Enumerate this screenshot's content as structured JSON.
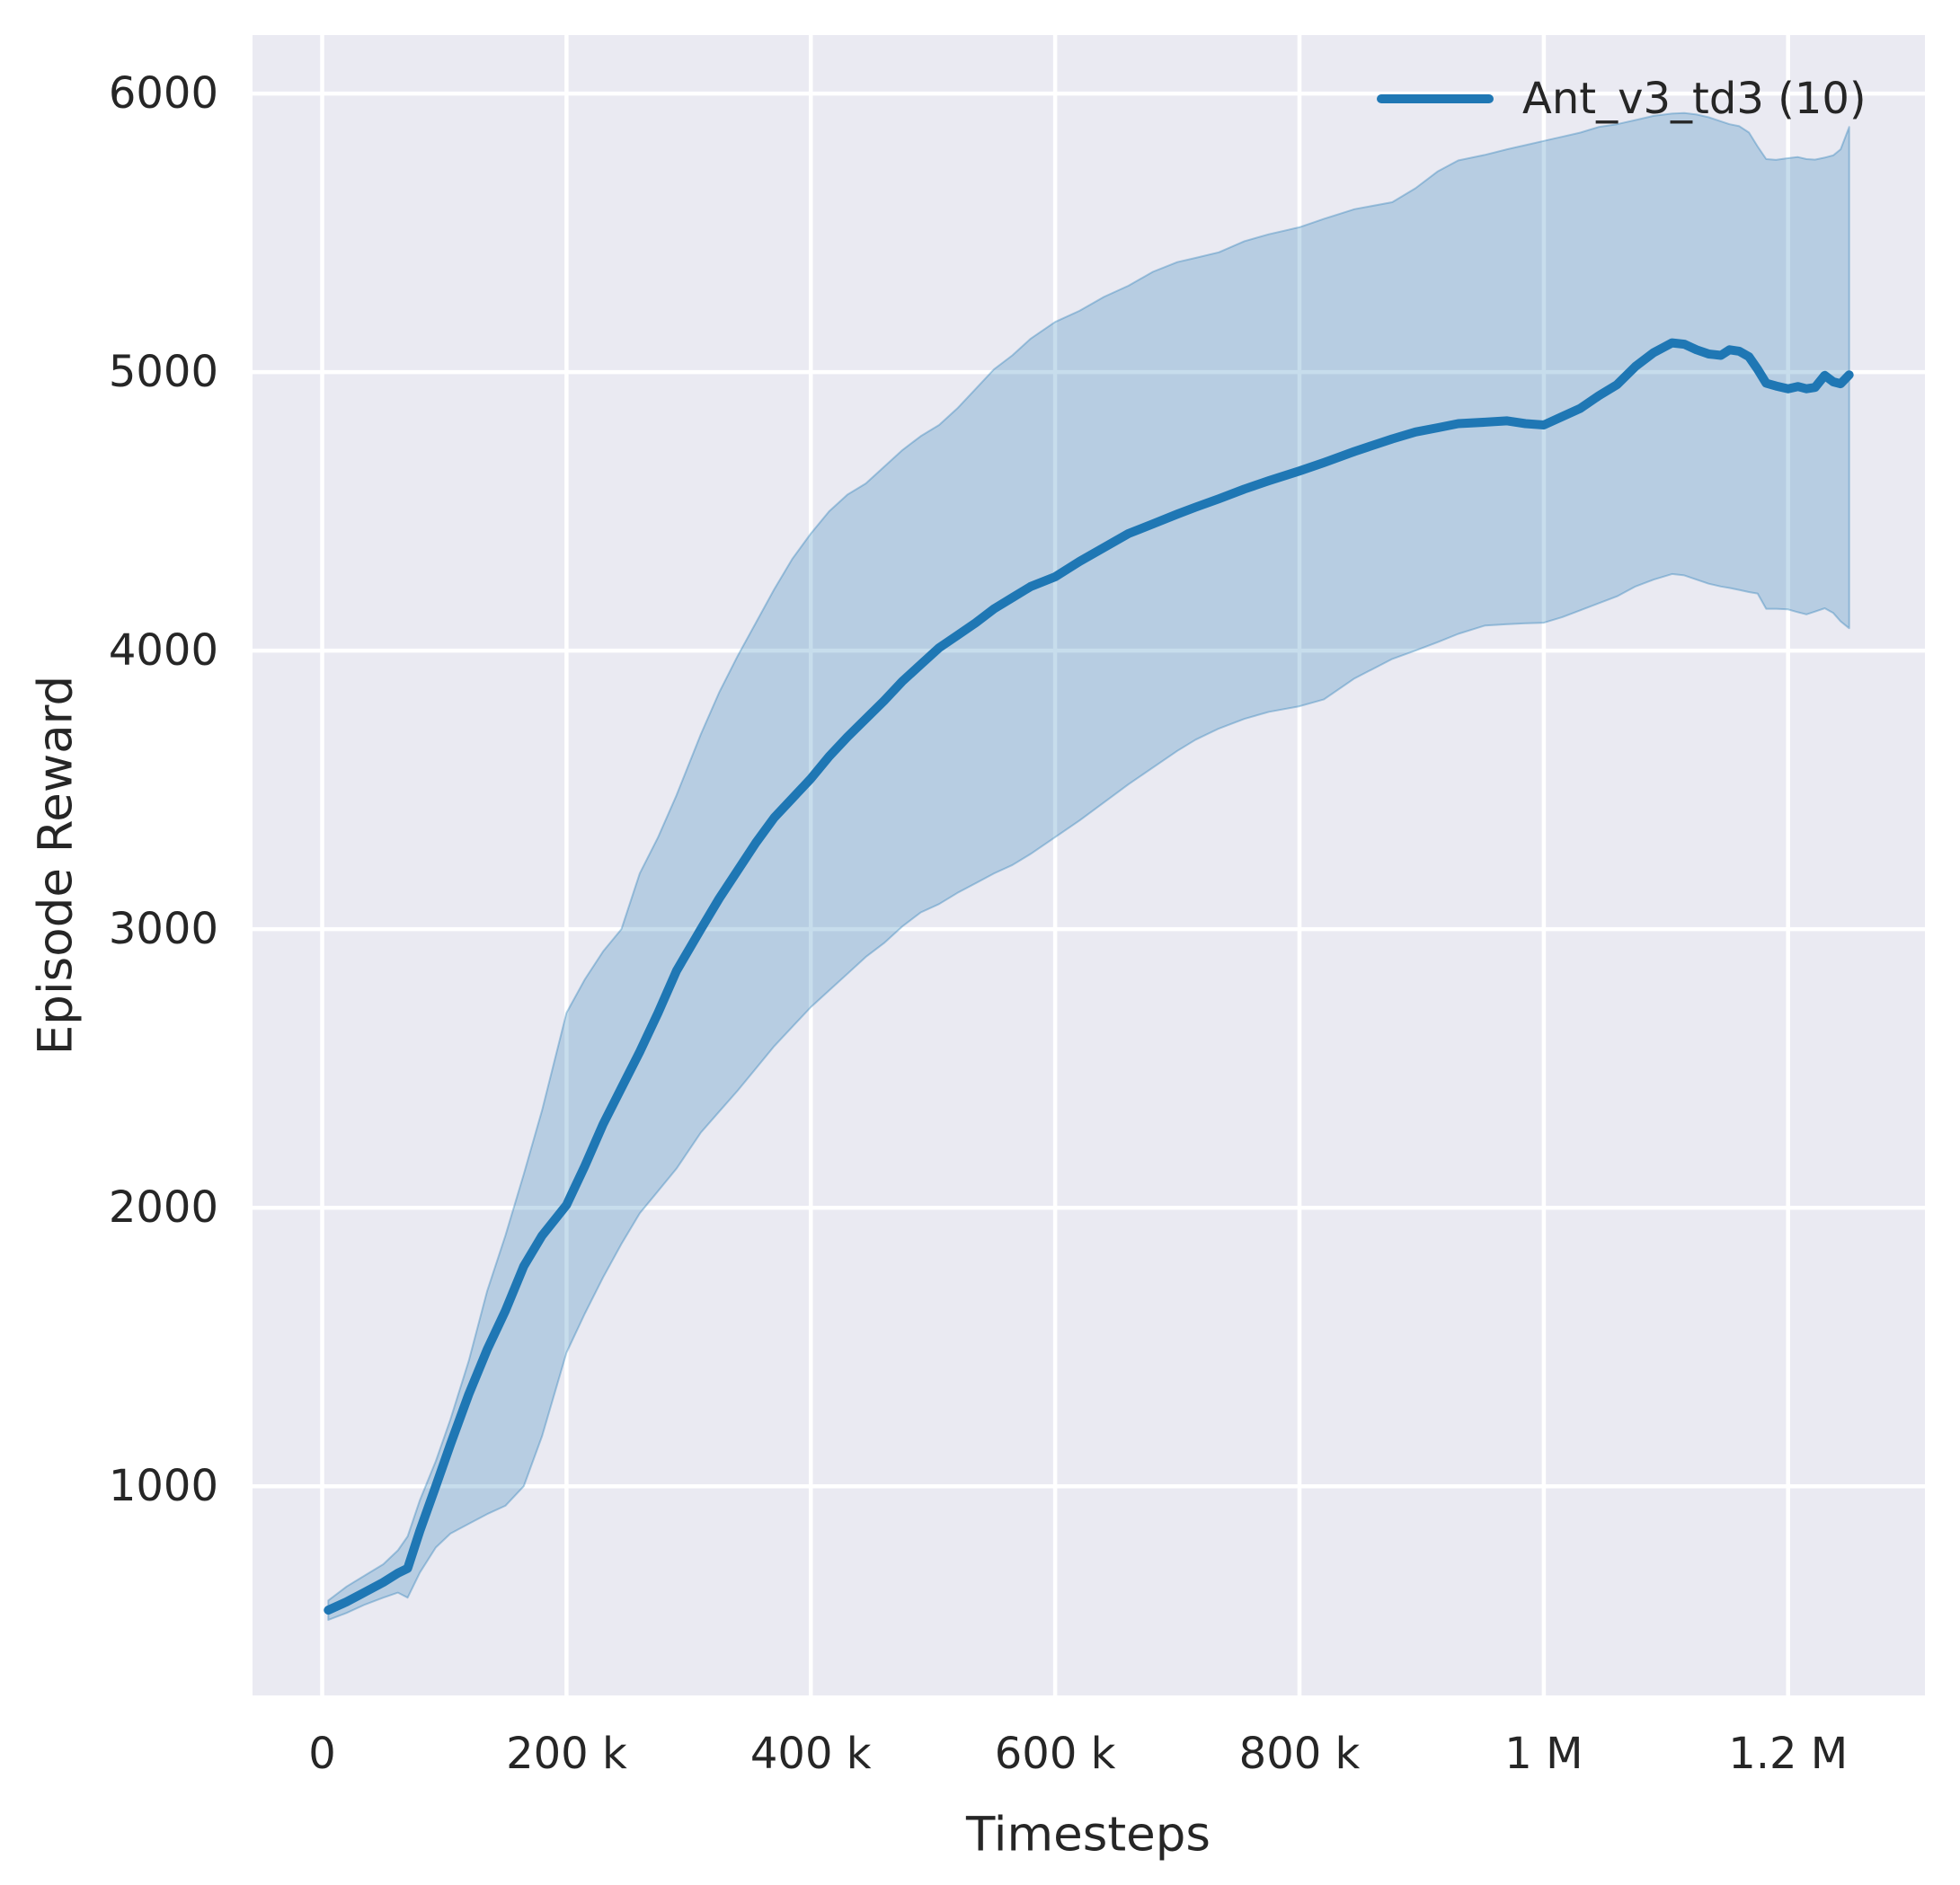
{
  "figure": {
    "background": "#ffffff"
  },
  "axes": {
    "background": "#eaeaf2",
    "grid_color": "#ffffff",
    "text_color": "#262626"
  },
  "chart_data": {
    "type": "line",
    "title": "",
    "xlabel": "Timesteps",
    "ylabel": "Episode Reward",
    "grid": true,
    "legend_position": "upper right",
    "xlim": [
      -57000,
      1312000
    ],
    "ylim": [
      249,
      6210
    ],
    "xticks": {
      "values": [
        0,
        200000,
        400000,
        600000,
        800000,
        1000000,
        1200000
      ],
      "labels": [
        "0",
        "200 k",
        "400 k",
        "600 k",
        "800 k",
        "1 M",
        "1.2 M"
      ]
    },
    "yticks": {
      "values": [
        1000,
        2000,
        3000,
        4000,
        5000,
        6000
      ],
      "labels": [
        "1000",
        "2000",
        "3000",
        "4000",
        "5000",
        "6000"
      ]
    },
    "series": [
      {
        "name": "Ant_v3_td3 (10)",
        "color": "#1f77b4",
        "band_alpha": 0.25,
        "band_edge_alpha": 0.35,
        "x": [
          5000,
          20000,
          35000,
          50000,
          62000,
          70000,
          80000,
          93000,
          105000,
          120000,
          135000,
          150000,
          165000,
          180000,
          200000,
          215000,
          230000,
          245000,
          260000,
          275000,
          290000,
          310000,
          325000,
          340000,
          355000,
          370000,
          385000,
          400000,
          415000,
          430000,
          445000,
          460000,
          475000,
          490000,
          505000,
          520000,
          535000,
          550000,
          565000,
          580000,
          600000,
          620000,
          640000,
          660000,
          680000,
          700000,
          715000,
          734000,
          755000,
          775000,
          800000,
          820000,
          845000,
          876000,
          895000,
          913000,
          930000,
          952000,
          970000,
          985000,
          1000000,
          1015000,
          1030000,
          1045000,
          1060000,
          1075000,
          1090000,
          1105000,
          1115000,
          1125000,
          1135000,
          1145000,
          1152000,
          1160000,
          1168000,
          1175000,
          1182000,
          1190000,
          1200000,
          1208000,
          1215000,
          1222000,
          1230000,
          1237000,
          1243000,
          1250000
        ],
        "mean": [
          555,
          585,
          620,
          655,
          688,
          705,
          840,
          1000,
          1150,
          1330,
          1490,
          1630,
          1790,
          1900,
          2010,
          2150,
          2300,
          2430,
          2560,
          2700,
          2850,
          3000,
          3110,
          3210,
          3310,
          3400,
          3470,
          3540,
          3620,
          3690,
          3755,
          3820,
          3890,
          3950,
          4010,
          4055,
          4100,
          4150,
          4190,
          4230,
          4265,
          4320,
          4370,
          4420,
          4455,
          4490,
          4515,
          4545,
          4580,
          4610,
          4645,
          4675,
          4715,
          4760,
          4785,
          4800,
          4815,
          4820,
          4825,
          4815,
          4810,
          4840,
          4870,
          4915,
          4955,
          5020,
          5070,
          5105,
          5100,
          5080,
          5065,
          5060,
          5080,
          5075,
          5055,
          5010,
          4960,
          4950,
          4940,
          4948,
          4940,
          4945,
          4988,
          4965,
          4958,
          4990
        ],
        "lower": [
          520,
          545,
          575,
          600,
          618,
          600,
          690,
          780,
          830,
          865,
          900,
          930,
          1000,
          1180,
          1480,
          1620,
          1750,
          1870,
          1980,
          2060,
          2140,
          2270,
          2345,
          2420,
          2500,
          2580,
          2650,
          2720,
          2780,
          2840,
          2900,
          2950,
          3010,
          3060,
          3090,
          3130,
          3165,
          3200,
          3230,
          3270,
          3330,
          3390,
          3455,
          3520,
          3580,
          3640,
          3680,
          3720,
          3755,
          3780,
          3800,
          3825,
          3900,
          3970,
          4000,
          4030,
          4060,
          4090,
          4095,
          4098,
          4100,
          4120,
          4145,
          4170,
          4195,
          4230,
          4255,
          4275,
          4270,
          4255,
          4240,
          4230,
          4225,
          4218,
          4210,
          4205,
          4150,
          4150,
          4148,
          4138,
          4130,
          4140,
          4152,
          4135,
          4105,
          4080
        ],
        "upper": [
          590,
          640,
          680,
          720,
          770,
          820,
          950,
          1090,
          1240,
          1450,
          1700,
          1900,
          2120,
          2350,
          2700,
          2820,
          2920,
          3000,
          3200,
          3330,
          3480,
          3700,
          3850,
          3980,
          4100,
          4220,
          4330,
          4420,
          4500,
          4560,
          4600,
          4660,
          4720,
          4770,
          4810,
          4870,
          4940,
          5010,
          5060,
          5120,
          5180,
          5220,
          5270,
          5310,
          5360,
          5395,
          5410,
          5430,
          5470,
          5495,
          5520,
          5550,
          5585,
          5610,
          5660,
          5720,
          5760,
          5780,
          5800,
          5815,
          5830,
          5845,
          5860,
          5880,
          5890,
          5905,
          5920,
          5928,
          5930,
          5925,
          5915,
          5900,
          5890,
          5883,
          5860,
          5810,
          5765,
          5762,
          5768,
          5772,
          5765,
          5763,
          5770,
          5778,
          5800,
          5880
        ]
      }
    ]
  }
}
